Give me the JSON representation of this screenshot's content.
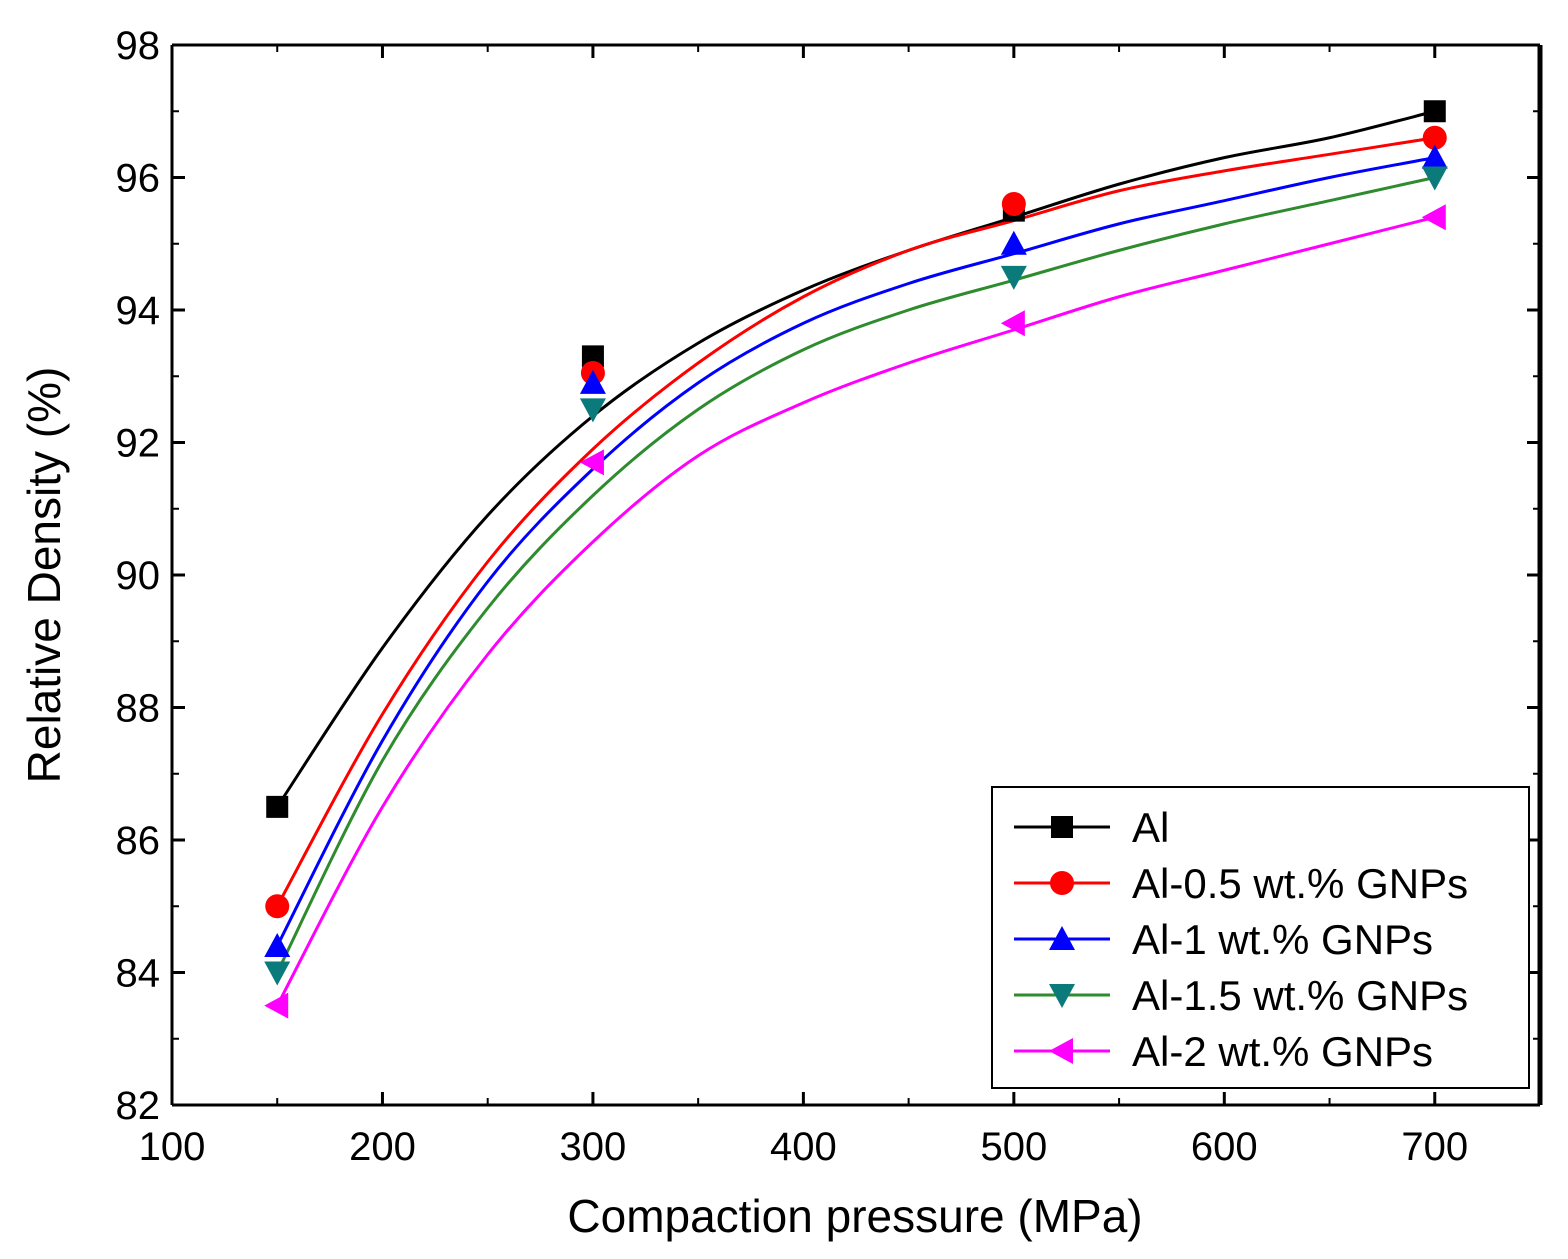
{
  "chart_data": {
    "type": "line",
    "title": "",
    "xlabel": "Compaction pressure (MPa)",
    "ylabel": "Relative Density (%)",
    "xlim": [
      100,
      750
    ],
    "ylim": [
      82,
      98
    ],
    "x_ticks": [
      100,
      200,
      300,
      400,
      500,
      600,
      700
    ],
    "y_ticks": [
      82,
      84,
      86,
      88,
      90,
      92,
      94,
      96,
      98
    ],
    "x_tick_labels": [
      "100",
      "200",
      "300",
      "400",
      "500",
      "600",
      "700"
    ],
    "y_tick_labels": [
      "82",
      "84",
      "86",
      "88",
      "90",
      "92",
      "94",
      "96",
      "98"
    ],
    "grid": false,
    "legend_position": "bottom-right",
    "x": [
      150,
      300,
      500,
      700
    ],
    "series": [
      {
        "name": "Al",
        "values": [
          86.5,
          93.3,
          95.5,
          97.0
        ],
        "color": "#000000",
        "marker": "square",
        "curve": [
          [
            150,
            86.5
          ],
          [
            200,
            88.9
          ],
          [
            250,
            90.9
          ],
          [
            300,
            92.4
          ],
          [
            350,
            93.5
          ],
          [
            400,
            94.3
          ],
          [
            450,
            94.9
          ],
          [
            500,
            95.4
          ],
          [
            550,
            95.9
          ],
          [
            600,
            96.3
          ],
          [
            650,
            96.6
          ],
          [
            700,
            97.0
          ]
        ]
      },
      {
        "name": "Al-0.5 wt.% GNPs",
        "values": [
          85.0,
          93.05,
          95.6,
          96.6
        ],
        "color": "#ff0000",
        "marker": "circle",
        "curve": [
          [
            150,
            85.0
          ],
          [
            200,
            87.9
          ],
          [
            250,
            90.2
          ],
          [
            300,
            91.9
          ],
          [
            350,
            93.2
          ],
          [
            400,
            94.2
          ],
          [
            450,
            94.9
          ],
          [
            500,
            95.35
          ],
          [
            550,
            95.8
          ],
          [
            600,
            96.1
          ],
          [
            650,
            96.35
          ],
          [
            700,
            96.6
          ]
        ]
      },
      {
        "name": "Al-1 wt.% GNPs",
        "values": [
          84.4,
          92.9,
          95.0,
          96.3
        ],
        "color": "#0000ff",
        "marker": "triangle-up",
        "curve": [
          [
            150,
            84.4
          ],
          [
            200,
            87.5
          ],
          [
            250,
            89.9
          ],
          [
            300,
            91.6
          ],
          [
            350,
            92.9
          ],
          [
            400,
            93.8
          ],
          [
            450,
            94.4
          ],
          [
            500,
            94.85
          ],
          [
            550,
            95.3
          ],
          [
            600,
            95.65
          ],
          [
            650,
            96.0
          ],
          [
            700,
            96.3
          ]
        ]
      },
      {
        "name": "Al-1.5 wt.% GNPs",
        "values": [
          84.0,
          92.5,
          94.5,
          96.0
        ],
        "color": "#2e8b2e",
        "marker": "triangle-down",
        "curve": [
          [
            150,
            84.0
          ],
          [
            200,
            87.2
          ],
          [
            250,
            89.5
          ],
          [
            300,
            91.2
          ],
          [
            350,
            92.5
          ],
          [
            400,
            93.4
          ],
          [
            450,
            94.0
          ],
          [
            500,
            94.45
          ],
          [
            550,
            94.9
          ],
          [
            600,
            95.3
          ],
          [
            650,
            95.65
          ],
          [
            700,
            96.0
          ]
        ]
      },
      {
        "name": "Al-2 wt.% GNPs",
        "values": [
          83.5,
          91.7,
          93.8,
          95.4
        ],
        "color": "#ff00ff",
        "marker": "triangle-left",
        "curve": [
          [
            150,
            83.5
          ],
          [
            200,
            86.5
          ],
          [
            250,
            88.8
          ],
          [
            300,
            90.5
          ],
          [
            350,
            91.8
          ],
          [
            400,
            92.6
          ],
          [
            450,
            93.2
          ],
          [
            500,
            93.7
          ],
          [
            550,
            94.2
          ],
          [
            600,
            94.6
          ],
          [
            650,
            95.0
          ],
          [
            700,
            95.4
          ]
        ]
      }
    ],
    "marker_colors": {
      "Al-1.5 wt.% GNPs": "#0b7a7a"
    }
  }
}
